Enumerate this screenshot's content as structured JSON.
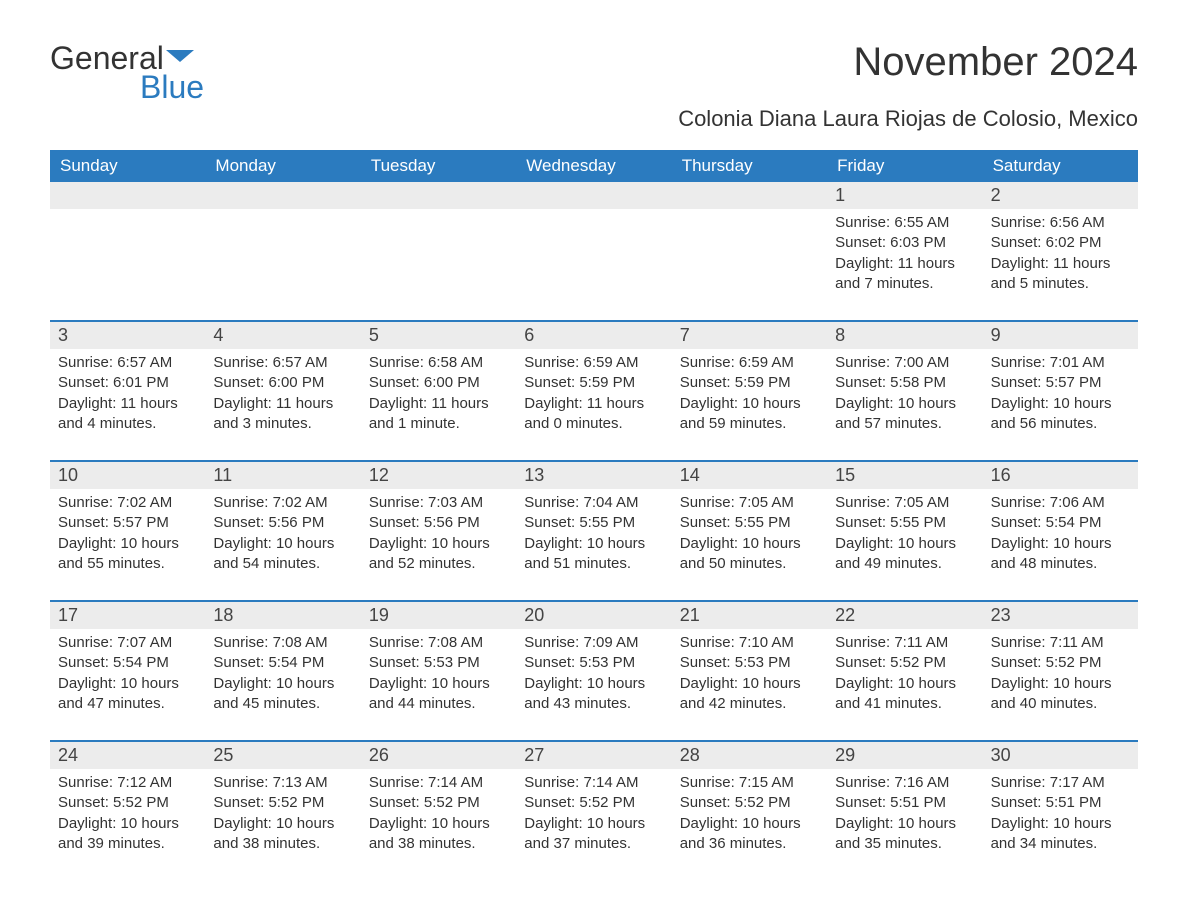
{
  "brand": {
    "part1": "General",
    "part2": "Blue"
  },
  "title": "November 2024",
  "location": "Colonia Diana Laura Riojas de Colosio, Mexico",
  "colors": {
    "header_bg": "#2b7bbf",
    "header_fg": "#ffffff",
    "daynum_bg": "#ececec",
    "text": "#333333",
    "rule": "#2b7bbf"
  },
  "dow": [
    "Sunday",
    "Monday",
    "Tuesday",
    "Wednesday",
    "Thursday",
    "Friday",
    "Saturday"
  ],
  "weeks": [
    [
      null,
      null,
      null,
      null,
      null,
      {
        "n": "1",
        "sunrise": "Sunrise: 6:55 AM",
        "sunset": "Sunset: 6:03 PM",
        "daylight": "Daylight: 11 hours and 7 minutes."
      },
      {
        "n": "2",
        "sunrise": "Sunrise: 6:56 AM",
        "sunset": "Sunset: 6:02 PM",
        "daylight": "Daylight: 11 hours and 5 minutes."
      }
    ],
    [
      {
        "n": "3",
        "sunrise": "Sunrise: 6:57 AM",
        "sunset": "Sunset: 6:01 PM",
        "daylight": "Daylight: 11 hours and 4 minutes."
      },
      {
        "n": "4",
        "sunrise": "Sunrise: 6:57 AM",
        "sunset": "Sunset: 6:00 PM",
        "daylight": "Daylight: 11 hours and 3 minutes."
      },
      {
        "n": "5",
        "sunrise": "Sunrise: 6:58 AM",
        "sunset": "Sunset: 6:00 PM",
        "daylight": "Daylight: 11 hours and 1 minute."
      },
      {
        "n": "6",
        "sunrise": "Sunrise: 6:59 AM",
        "sunset": "Sunset: 5:59 PM",
        "daylight": "Daylight: 11 hours and 0 minutes."
      },
      {
        "n": "7",
        "sunrise": "Sunrise: 6:59 AM",
        "sunset": "Sunset: 5:59 PM",
        "daylight": "Daylight: 10 hours and 59 minutes."
      },
      {
        "n": "8",
        "sunrise": "Sunrise: 7:00 AM",
        "sunset": "Sunset: 5:58 PM",
        "daylight": "Daylight: 10 hours and 57 minutes."
      },
      {
        "n": "9",
        "sunrise": "Sunrise: 7:01 AM",
        "sunset": "Sunset: 5:57 PM",
        "daylight": "Daylight: 10 hours and 56 minutes."
      }
    ],
    [
      {
        "n": "10",
        "sunrise": "Sunrise: 7:02 AM",
        "sunset": "Sunset: 5:57 PM",
        "daylight": "Daylight: 10 hours and 55 minutes."
      },
      {
        "n": "11",
        "sunrise": "Sunrise: 7:02 AM",
        "sunset": "Sunset: 5:56 PM",
        "daylight": "Daylight: 10 hours and 54 minutes."
      },
      {
        "n": "12",
        "sunrise": "Sunrise: 7:03 AM",
        "sunset": "Sunset: 5:56 PM",
        "daylight": "Daylight: 10 hours and 52 minutes."
      },
      {
        "n": "13",
        "sunrise": "Sunrise: 7:04 AM",
        "sunset": "Sunset: 5:55 PM",
        "daylight": "Daylight: 10 hours and 51 minutes."
      },
      {
        "n": "14",
        "sunrise": "Sunrise: 7:05 AM",
        "sunset": "Sunset: 5:55 PM",
        "daylight": "Daylight: 10 hours and 50 minutes."
      },
      {
        "n": "15",
        "sunrise": "Sunrise: 7:05 AM",
        "sunset": "Sunset: 5:55 PM",
        "daylight": "Daylight: 10 hours and 49 minutes."
      },
      {
        "n": "16",
        "sunrise": "Sunrise: 7:06 AM",
        "sunset": "Sunset: 5:54 PM",
        "daylight": "Daylight: 10 hours and 48 minutes."
      }
    ],
    [
      {
        "n": "17",
        "sunrise": "Sunrise: 7:07 AM",
        "sunset": "Sunset: 5:54 PM",
        "daylight": "Daylight: 10 hours and 47 minutes."
      },
      {
        "n": "18",
        "sunrise": "Sunrise: 7:08 AM",
        "sunset": "Sunset: 5:54 PM",
        "daylight": "Daylight: 10 hours and 45 minutes."
      },
      {
        "n": "19",
        "sunrise": "Sunrise: 7:08 AM",
        "sunset": "Sunset: 5:53 PM",
        "daylight": "Daylight: 10 hours and 44 minutes."
      },
      {
        "n": "20",
        "sunrise": "Sunrise: 7:09 AM",
        "sunset": "Sunset: 5:53 PM",
        "daylight": "Daylight: 10 hours and 43 minutes."
      },
      {
        "n": "21",
        "sunrise": "Sunrise: 7:10 AM",
        "sunset": "Sunset: 5:53 PM",
        "daylight": "Daylight: 10 hours and 42 minutes."
      },
      {
        "n": "22",
        "sunrise": "Sunrise: 7:11 AM",
        "sunset": "Sunset: 5:52 PM",
        "daylight": "Daylight: 10 hours and 41 minutes."
      },
      {
        "n": "23",
        "sunrise": "Sunrise: 7:11 AM",
        "sunset": "Sunset: 5:52 PM",
        "daylight": "Daylight: 10 hours and 40 minutes."
      }
    ],
    [
      {
        "n": "24",
        "sunrise": "Sunrise: 7:12 AM",
        "sunset": "Sunset: 5:52 PM",
        "daylight": "Daylight: 10 hours and 39 minutes."
      },
      {
        "n": "25",
        "sunrise": "Sunrise: 7:13 AM",
        "sunset": "Sunset: 5:52 PM",
        "daylight": "Daylight: 10 hours and 38 minutes."
      },
      {
        "n": "26",
        "sunrise": "Sunrise: 7:14 AM",
        "sunset": "Sunset: 5:52 PM",
        "daylight": "Daylight: 10 hours and 38 minutes."
      },
      {
        "n": "27",
        "sunrise": "Sunrise: 7:14 AM",
        "sunset": "Sunset: 5:52 PM",
        "daylight": "Daylight: 10 hours and 37 minutes."
      },
      {
        "n": "28",
        "sunrise": "Sunrise: 7:15 AM",
        "sunset": "Sunset: 5:52 PM",
        "daylight": "Daylight: 10 hours and 36 minutes."
      },
      {
        "n": "29",
        "sunrise": "Sunrise: 7:16 AM",
        "sunset": "Sunset: 5:51 PM",
        "daylight": "Daylight: 10 hours and 35 minutes."
      },
      {
        "n": "30",
        "sunrise": "Sunrise: 7:17 AM",
        "sunset": "Sunset: 5:51 PM",
        "daylight": "Daylight: 10 hours and 34 minutes."
      }
    ]
  ]
}
